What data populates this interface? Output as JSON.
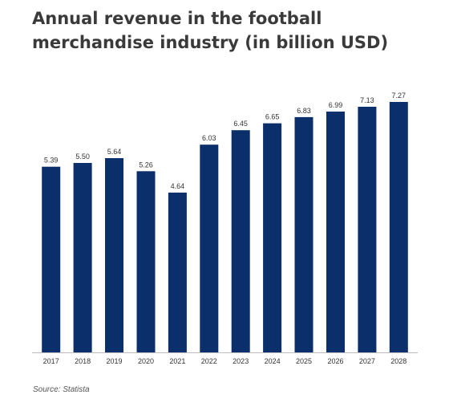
{
  "title": "Annual revenue in the football merchandise industry (in billion USD)",
  "source": "Source: Statista",
  "colors": {
    "bar": "#0b2f6b",
    "axis": "#bdbdbd",
    "text": "#333333"
  },
  "chart_data": {
    "type": "bar",
    "title": "Annual revenue in the football merchandise industry (in billion USD)",
    "xlabel": "",
    "ylabel": "",
    "categories": [
      "2017",
      "2018",
      "2019",
      "2020",
      "2021",
      "2022",
      "2023",
      "2024",
      "2025",
      "2026",
      "2027",
      "2028"
    ],
    "values": [
      5.39,
      5.5,
      5.64,
      5.26,
      4.64,
      6.03,
      6.45,
      6.65,
      6.83,
      6.99,
      7.13,
      7.27
    ],
    "value_labels": [
      "5.39",
      "5.50",
      "5.64",
      "5.26",
      "4.64",
      "6.03",
      "6.45",
      "6.65",
      "6.83",
      "6.99",
      "7.13",
      "7.27"
    ],
    "ylim": [
      0,
      7.27
    ],
    "grid": false,
    "legend": "none"
  }
}
